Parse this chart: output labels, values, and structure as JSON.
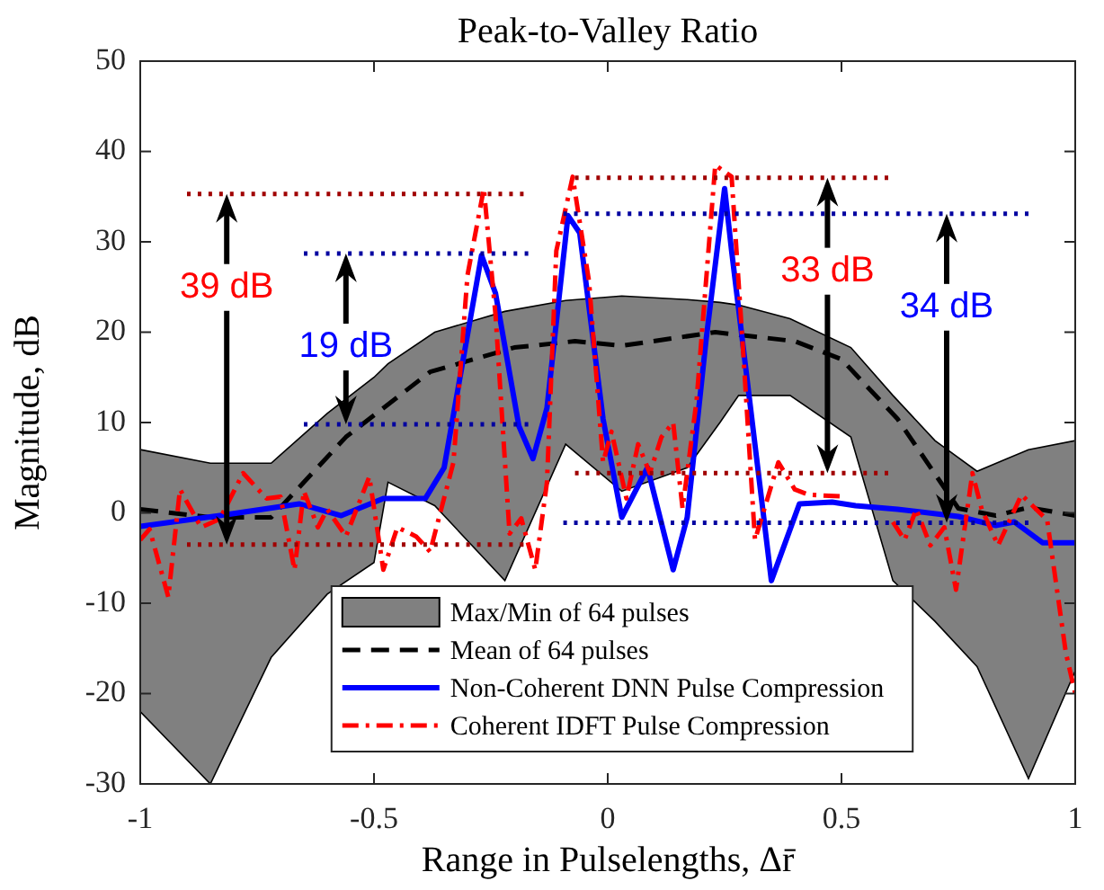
{
  "chart_data": {
    "type": "line",
    "title": "Peak-to-Valley Ratio",
    "xlabel": "Range in Pulselengths, Δr̄",
    "ylabel": "Magnitude, dB",
    "xlim": [
      -1,
      1
    ],
    "xticks": [
      -1,
      -0.5,
      0,
      0.5,
      1
    ],
    "ylim": [
      -30,
      50
    ],
    "yticks": [
      -30,
      -20,
      -10,
      0,
      10,
      20,
      30,
      40,
      50
    ],
    "grid": false,
    "legend": "bottom",
    "marker": "none",
    "series": [
      {
        "name": "Max/Min of 64 pulses",
        "type": "area",
        "color": "#808080",
        "x": [
          -1,
          -0.85,
          -0.72,
          -0.6,
          -0.5,
          -0.47,
          -0.37,
          -0.22,
          -0.09,
          0.03,
          0.17,
          0.24,
          0.28,
          0.39,
          0.52,
          0.61,
          0.7,
          0.79,
          0.9,
          1,
          1,
          0.9,
          0.79,
          0.7,
          0.61,
          0.52,
          0.39,
          0.28,
          0.24,
          0.17,
          0.03,
          -0.09,
          -0.22,
          -0.37,
          -0.47,
          -0.5,
          -0.6,
          -0.72,
          -0.85,
          -1
        ],
        "values": [
          7,
          5.5,
          5.5,
          11,
          15,
          16.5,
          20,
          22.3,
          23.5,
          24,
          23.6,
          23.3,
          23,
          21.5,
          18.3,
          13,
          8,
          4.6,
          7,
          8,
          -17.5,
          -29.4,
          -17,
          -12,
          -7.5,
          8.4,
          13,
          13,
          10,
          5,
          2.4,
          7.6,
          -7.5,
          0.8,
          3.4,
          -5.5,
          -9,
          -16,
          -30,
          -22
        ]
      },
      {
        "name": "Mean of 64 pulses",
        "color": "#000000",
        "line_style": "dashed",
        "x": [
          -1,
          -0.85,
          -0.72,
          -0.56,
          -0.38,
          -0.2,
          -0.07,
          0.03,
          0.23,
          0.4,
          0.5,
          0.62,
          0.75,
          0.83,
          0.9,
          1
        ],
        "values": [
          0.4,
          -0.5,
          -0.5,
          8.4,
          15.6,
          18.3,
          19,
          18.5,
          20,
          19,
          17,
          10.4,
          0.5,
          -0.3,
          0.6,
          -0.3
        ]
      },
      {
        "name": "Non-Coherent DNN Pulse Compression",
        "color": "#0000ff",
        "line_style": "solid",
        "x": [
          -1,
          -0.83,
          -0.66,
          -0.57,
          -0.48,
          -0.39,
          -0.35,
          -0.27,
          -0.24,
          -0.19,
          -0.16,
          -0.13,
          -0.085,
          -0.06,
          -0.01,
          0.03,
          0.085,
          0.14,
          0.17,
          0.21,
          0.25,
          0.265,
          0.35,
          0.41,
          0.48,
          0.53,
          0.62,
          0.75,
          0.83,
          0.87,
          0.93,
          1
        ],
        "values": [
          -1.5,
          -0.3,
          1,
          -0.3,
          1.6,
          1.6,
          5,
          28.5,
          24.3,
          9.6,
          6,
          11.6,
          32.9,
          31,
          10.4,
          -0.5,
          5,
          -6.3,
          -0.5,
          19,
          35.9,
          29,
          -7.5,
          1,
          1.2,
          0.8,
          0.4,
          -0.4,
          -1.4,
          -1,
          -3.3,
          -3.3
        ]
      },
      {
        "name": "Coherent IDFT Pulse Compression",
        "color": "#ff0000",
        "line_style": "dashdot",
        "x": [
          -1,
          -0.98,
          -0.94,
          -0.915,
          -0.87,
          -0.83,
          -0.78,
          -0.73,
          -0.7,
          -0.67,
          -0.65,
          -0.62,
          -0.6,
          -0.56,
          -0.51,
          -0.48,
          -0.45,
          -0.41,
          -0.38,
          -0.33,
          -0.3,
          -0.265,
          -0.24,
          -0.21,
          -0.185,
          -0.155,
          -0.13,
          -0.11,
          -0.075,
          -0.04,
          -0.01,
          0.008,
          0.04,
          0.065,
          0.09,
          0.115,
          0.14,
          0.16,
          0.19,
          0.23,
          0.265,
          0.29,
          0.315,
          0.365,
          0.4,
          0.43,
          0.51,
          0.56,
          0.61,
          0.635,
          0.66,
          0.69,
          0.72,
          0.745,
          0.78,
          0.8,
          0.835,
          0.885,
          0.94,
          0.98,
          1
        ],
        "values": [
          -3,
          -1.8,
          -9.3,
          2.6,
          -1.6,
          -0.7,
          4.4,
          1.6,
          1.8,
          -6.3,
          2.4,
          -1.6,
          0.4,
          -2.6,
          4,
          -6.3,
          -1.6,
          -2.6,
          -4.3,
          5.6,
          26.3,
          35.9,
          21.9,
          -2.3,
          -0.6,
          -6.3,
          3.4,
          29,
          37.2,
          25.6,
          5.6,
          9,
          1.6,
          7.6,
          4.4,
          8.4,
          10,
          0.5,
          12.4,
          38.5,
          37.2,
          17.6,
          -3,
          5.6,
          2.6,
          2,
          1.8,
          null,
          -1,
          -3,
          0.4,
          -3.6,
          -1.6,
          -8.5,
          4.4,
          0.4,
          -3.6,
          2,
          -0.8,
          -15.5,
          -20
        ]
      },
      {
        "color": "#a00000",
        "line_style": "dotted",
        "x": [
          -0.9,
          -0.18
        ],
        "values": [
          35.3,
          35.3
        ]
      },
      {
        "color": "#a00000",
        "line_style": "dotted",
        "x": [
          -0.9,
          -0.18
        ],
        "values": [
          -3.5,
          -3.5
        ]
      },
      {
        "color": "#0000a0",
        "line_style": "dotted",
        "x": [
          -0.65,
          -0.17
        ],
        "values": [
          28.7,
          28.7
        ]
      },
      {
        "color": "#0000a0",
        "line_style": "dotted",
        "x": [
          -0.65,
          -0.17
        ],
        "values": [
          9.8,
          9.8
        ]
      },
      {
        "color": "#a00000",
        "line_style": "dotted",
        "x": [
          -0.07,
          0.6
        ],
        "values": [
          37.1,
          37.1
        ]
      },
      {
        "color": "#a00000",
        "line_style": "dotted",
        "x": [
          -0.07,
          0.6
        ],
        "values": [
          4.4,
          4.4
        ]
      },
      {
        "color": "#0000a0",
        "line_style": "dotted",
        "x": [
          -0.095,
          0.9
        ],
        "values": [
          33.1,
          33.1
        ]
      },
      {
        "color": "#0000a0",
        "line_style": "dotted",
        "x": [
          -0.095,
          0.9
        ],
        "values": [
          -1.1,
          -1.1
        ]
      }
    ],
    "annotations": [
      {
        "text": "39 dB",
        "x": -0.815,
        "y": 35.3
      },
      {
        "text": "19 dB",
        "x": -0.56,
        "y": 28.7
      },
      {
        "text": "33 dB",
        "x": 0.47,
        "y": 37.1
      },
      {
        "text": "34 dB",
        "x": 0.725,
        "y": 33.1
      }
    ]
  }
}
